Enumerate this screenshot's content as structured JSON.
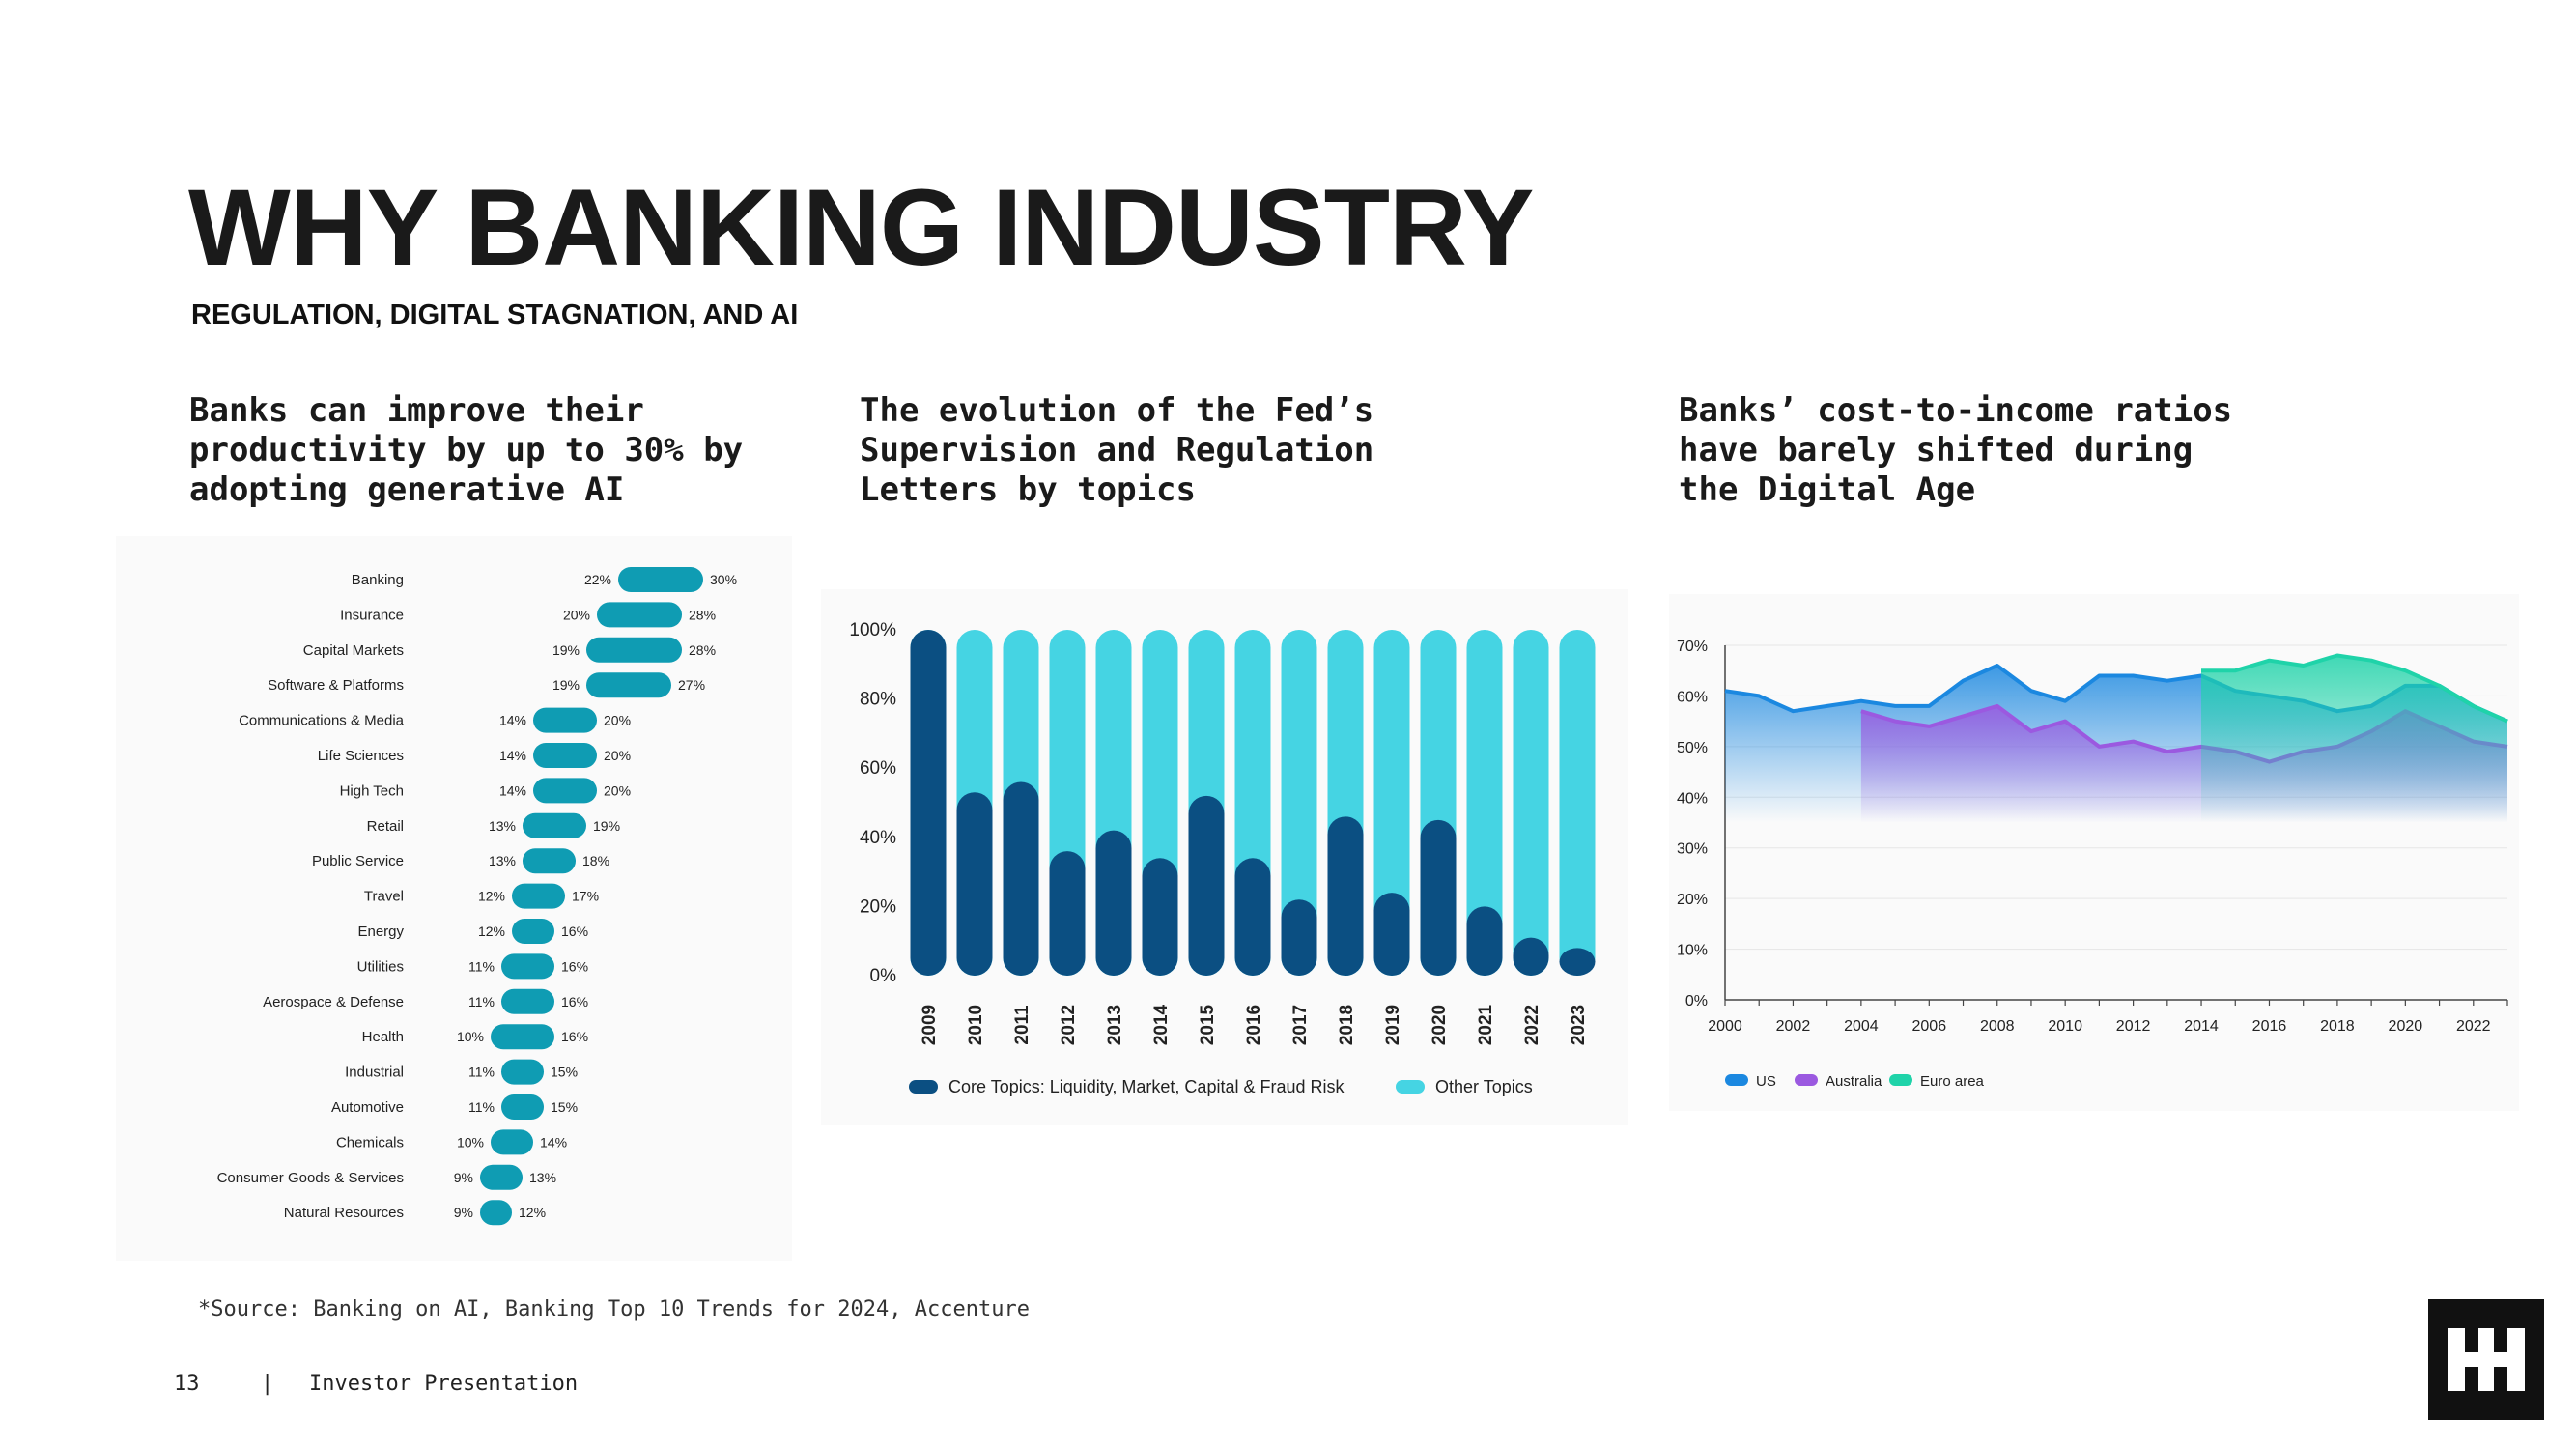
{
  "slide": {
    "title": "WHY BANKING INDUSTRY",
    "subtitle": "REGULATION, DIGITAL STAGNATION, AND AI",
    "source": "*Source: Banking on AI, Banking Top 10 Trends for 2024, Accenture",
    "page_number": "13",
    "separator": "|",
    "footer_label": "Investor Presentation",
    "logo_name": "brand-logo"
  },
  "panels": [
    {
      "title_lines": [
        "Banks can improve their",
        "productivity by up to 30% by",
        "adopting generative AI"
      ]
    },
    {
      "title_lines": [
        "The evolution of the Fed’s",
        "Supervision and Regulation",
        "Letters by topics"
      ]
    },
    {
      "title_lines": [
        "Banks’ cost-to-income ratios",
        "have barely shifted during",
        "the Digital Age"
      ]
    }
  ],
  "colors": {
    "teal": "#0f9cb3",
    "core": "#0b4f82",
    "other": "#45d4e3",
    "us": "#1b88e0",
    "australia": "#9b59e0",
    "euro": "#1fd3a9"
  },
  "chart_data": [
    {
      "type": "bar",
      "orientation": "horizontal-range",
      "title": "Banks can improve their productivity by up to 30% by adopting generative AI",
      "categories": [
        "Banking",
        "Insurance",
        "Capital Markets",
        "Software & Platforms",
        "Communications & Media",
        "Life Sciences",
        "High Tech",
        "Retail",
        "Public Service",
        "Travel",
        "Energy",
        "Utilities",
        "Aerospace & Defense",
        "Health",
        "Industrial",
        "Automotive",
        "Chemicals",
        "Consumer Goods & Services",
        "Natural Resources"
      ],
      "low": [
        22,
        20,
        19,
        19,
        14,
        14,
        14,
        13,
        13,
        12,
        12,
        11,
        11,
        10,
        11,
        11,
        10,
        9,
        9
      ],
      "high": [
        30,
        28,
        28,
        27,
        20,
        20,
        20,
        19,
        18,
        17,
        16,
        16,
        16,
        16,
        15,
        15,
        14,
        13,
        12
      ],
      "low_labels": [
        "22%",
        "20%",
        "19%",
        "19%",
        "14%",
        "14%",
        "14%",
        "13%",
        "13%",
        "12%",
        "12%",
        "11%",
        "11%",
        "10%",
        "11%",
        "11%",
        "10%",
        "9%",
        "9%"
      ],
      "high_labels": [
        "30%",
        "28%",
        "28%",
        "27%",
        "20%",
        "20%",
        "20%",
        "19%",
        "18%",
        "17%",
        "16%",
        "16%",
        "16%",
        "16%",
        "15%",
        "15%",
        "14%",
        "13%",
        "12%"
      ]
    },
    {
      "type": "bar",
      "stacked": true,
      "title": "The evolution of the Fed’s Supervision and Regulation Letters by topics",
      "categories": [
        "2009",
        "2010",
        "2011",
        "2012",
        "2013",
        "2014",
        "2015",
        "2016",
        "2017",
        "2018",
        "2019",
        "2020",
        "2021",
        "2022",
        "2023"
      ],
      "series": [
        {
          "name": "Core Topics: Liquidity, Market, Capital & Fraud Risk",
          "values": [
            100,
            53,
            56,
            36,
            42,
            34,
            52,
            34,
            22,
            46,
            24,
            45,
            20,
            11,
            8
          ]
        },
        {
          "name": "Other Topics",
          "values": [
            0,
            47,
            44,
            64,
            58,
            66,
            48,
            66,
            78,
            54,
            76,
            55,
            80,
            89,
            92
          ]
        }
      ],
      "yticks": [
        "0%",
        "20%",
        "40%",
        "60%",
        "80%",
        "100%"
      ],
      "ylim": [
        0,
        100
      ]
    },
    {
      "type": "area",
      "title": "Banks’ cost-to-income ratios have barely shifted during the Digital Age",
      "x": [
        2000,
        2001,
        2002,
        2003,
        2004,
        2005,
        2006,
        2007,
        2008,
        2009,
        2010,
        2011,
        2012,
        2013,
        2014,
        2015,
        2016,
        2017,
        2018,
        2019,
        2020,
        2021,
        2022,
        2023
      ],
      "series": [
        {
          "name": "US",
          "values": [
            61,
            60,
            57,
            58,
            59,
            58,
            58,
            63,
            66,
            61,
            59,
            64,
            64,
            63,
            64,
            61,
            60,
            59,
            57,
            58,
            62,
            62,
            58,
            55
          ]
        },
        {
          "name": "Australia",
          "values": [
            null,
            null,
            null,
            null,
            57,
            55,
            54,
            56,
            58,
            53,
            55,
            50,
            51,
            49,
            50,
            49,
            47,
            49,
            50,
            53,
            57,
            54,
            51,
            50
          ]
        },
        {
          "name": "Euro area",
          "values": [
            null,
            null,
            null,
            null,
            null,
            null,
            null,
            null,
            null,
            null,
            null,
            null,
            null,
            null,
            65,
            65,
            67,
            66,
            68,
            67,
            65,
            62,
            58,
            55
          ]
        }
      ],
      "xticks": [
        "2000",
        "2002",
        "2004",
        "2006",
        "2008",
        "2010",
        "2012",
        "2014",
        "2016",
        "2018",
        "2020",
        "2022"
      ],
      "yticks": [
        "0%",
        "10%",
        "20%",
        "30%",
        "40%",
        "50%",
        "60%",
        "70%"
      ],
      "ylim": [
        0,
        70
      ]
    }
  ]
}
